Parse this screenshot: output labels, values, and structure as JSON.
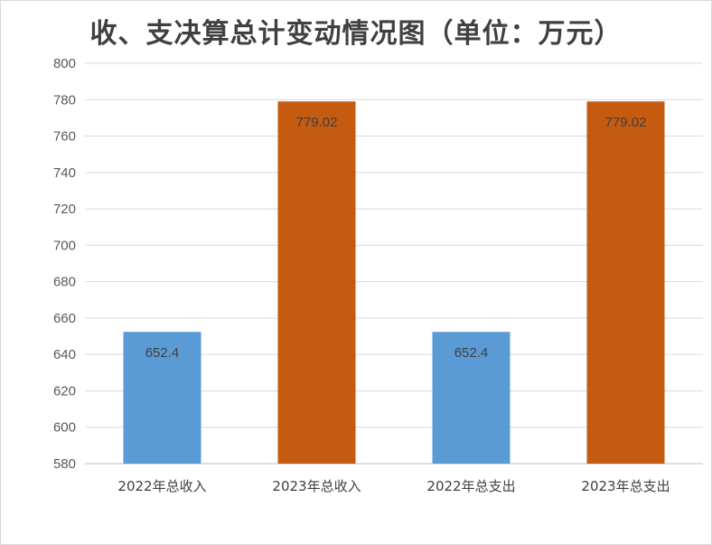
{
  "chart_data": {
    "type": "bar",
    "title": "收、支决算总计变动情况图（单位：万元）",
    "categories": [
      "2022年总收入",
      "2023年总收入",
      "2022年总支出",
      "2023年总支出"
    ],
    "values": [
      652.4,
      779.02,
      652.4,
      779.02
    ],
    "data_labels": [
      "652.4",
      "779.02",
      "652.4",
      "779.02"
    ],
    "colors": [
      "#5b9bd5",
      "#c55a11",
      "#5b9bd5",
      "#c55a11"
    ],
    "ylim": [
      580,
      800
    ],
    "yticks": [
      580,
      600,
      620,
      640,
      660,
      680,
      700,
      720,
      740,
      760,
      780,
      800
    ],
    "grid": true,
    "xlabel": "",
    "ylabel": ""
  }
}
